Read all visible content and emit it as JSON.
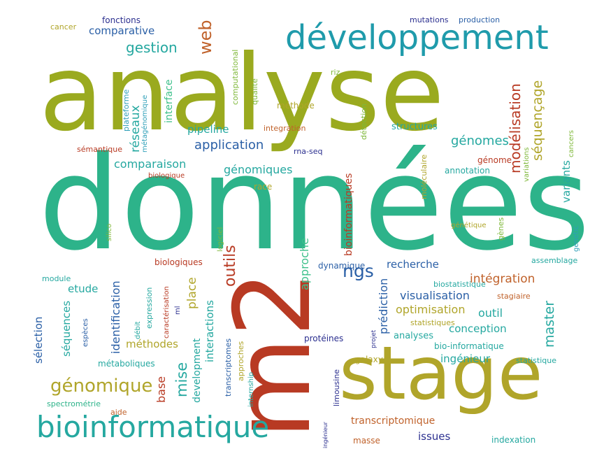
{
  "colors": {
    "olive": "#9aaa1f",
    "teal": "#25a8a0",
    "green": "#2db38a",
    "sea": "#1f9bab",
    "blue": "#2a5fa6",
    "navy": "#2b2f8f",
    "red": "#b83a23",
    "rust": "#c0622b",
    "gold": "#b0a52a",
    "lime": "#7fb83a",
    "mint": "#3cc08a",
    "cyan": "#2e9fb8"
  },
  "words": [
    {
      "text": "analyse",
      "color": "olive"
    },
    {
      "text": "données",
      "color": "green"
    },
    {
      "text": "développement",
      "color": "sea"
    },
    {
      "text": "stage",
      "color": "gold"
    },
    {
      "text": "m2",
      "color": "red"
    },
    {
      "text": "bioinformatique",
      "color": "teal"
    },
    {
      "text": "génomique",
      "color": "gold"
    },
    {
      "text": "web",
      "color": "rust"
    },
    {
      "text": "gestion",
      "color": "teal"
    },
    {
      "text": "comparative",
      "color": "blue"
    },
    {
      "text": "fonctions",
      "color": "navy"
    },
    {
      "text": "cancer",
      "color": "gold"
    },
    {
      "text": "mutations",
      "color": "navy"
    },
    {
      "text": "production",
      "color": "blue"
    },
    {
      "text": "modélisation",
      "color": "red"
    },
    {
      "text": "séquençage",
      "color": "gold"
    },
    {
      "text": "génomes",
      "color": "teal"
    },
    {
      "text": "application",
      "color": "blue"
    },
    {
      "text": "comparaison",
      "color": "teal"
    },
    {
      "text": "génomiques",
      "color": "teal"
    },
    {
      "text": "pipeline",
      "color": "teal"
    },
    {
      "text": "réseaux",
      "color": "teal"
    },
    {
      "text": "interface",
      "color": "mint"
    },
    {
      "text": "plateforme",
      "color": "cyan"
    },
    {
      "text": "métagénomique",
      "color": "cyan"
    },
    {
      "text": "qualité",
      "color": "lime"
    },
    {
      "text": "computational",
      "color": "lime"
    },
    {
      "text": "méthode",
      "color": "gold"
    },
    {
      "text": "riz",
      "color": "lime"
    },
    {
      "text": "integration",
      "color": "rust"
    },
    {
      "text": "détection",
      "color": "lime"
    },
    {
      "text": "structures",
      "color": "teal"
    },
    {
      "text": "rna-seq",
      "color": "navy"
    },
    {
      "text": "sémantique",
      "color": "red"
    },
    {
      "text": "biologique",
      "color": "red"
    },
    {
      "text": "bioinformatiques",
      "color": "red"
    },
    {
      "text": "moléculaire",
      "color": "gold"
    },
    {
      "text": "annotation",
      "color": "teal"
    },
    {
      "text": "génome",
      "color": "red"
    },
    {
      "text": "variants",
      "color": "teal"
    },
    {
      "text": "variations",
      "color": "lime"
    },
    {
      "text": "cancers",
      "color": "lime"
    },
    {
      "text": "race",
      "color": "gold"
    },
    {
      "text": "silico",
      "color": "lime"
    },
    {
      "text": "logiciel",
      "color": "lime"
    },
    {
      "text": "outils",
      "color": "red"
    },
    {
      "text": "approche",
      "color": "mint"
    },
    {
      "text": "ngs",
      "color": "blue"
    },
    {
      "text": "recherche",
      "color": "blue"
    },
    {
      "text": "dynamique",
      "color": "blue"
    },
    {
      "text": "génétique",
      "color": "gold"
    },
    {
      "text": "gènes",
      "color": "lime"
    },
    {
      "text": "genetic",
      "color": "cyan"
    },
    {
      "text": "assemblage",
      "color": "teal"
    },
    {
      "text": "intégration",
      "color": "rust"
    },
    {
      "text": "master",
      "color": "teal"
    },
    {
      "text": "module",
      "color": "teal"
    },
    {
      "text": "identification",
      "color": "blue"
    },
    {
      "text": "etude",
      "color": "teal"
    },
    {
      "text": "biologiques",
      "color": "red"
    },
    {
      "text": "expression",
      "color": "teal"
    },
    {
      "text": "caractérisation",
      "color": "red"
    },
    {
      "text": "place",
      "color": "gold"
    },
    {
      "text": "prédiction",
      "color": "blue"
    },
    {
      "text": "visualisation",
      "color": "blue"
    },
    {
      "text": "biostatistique",
      "color": "teal"
    },
    {
      "text": "stagiaire",
      "color": "rust"
    },
    {
      "text": "optimisation",
      "color": "gold"
    },
    {
      "text": "outil",
      "color": "teal"
    },
    {
      "text": "statistiques",
      "color": "gold"
    },
    {
      "text": "conception",
      "color": "teal"
    },
    {
      "text": "analyses",
      "color": "teal"
    },
    {
      "text": "sélection",
      "color": "blue"
    },
    {
      "text": "séquences",
      "color": "teal"
    },
    {
      "text": "espèces",
      "color": "blue"
    },
    {
      "text": "débit",
      "color": "teal"
    },
    {
      "text": "ml",
      "color": "navy"
    },
    {
      "text": "méthodes",
      "color": "gold"
    },
    {
      "text": "interactions",
      "color": "teal"
    },
    {
      "text": "mise",
      "color": "teal"
    },
    {
      "text": "development",
      "color": "teal"
    },
    {
      "text": "transcriptomes",
      "color": "blue"
    },
    {
      "text": "approches",
      "color": "gold"
    },
    {
      "text": "internship",
      "color": "teal"
    },
    {
      "text": "protéines",
      "color": "navy"
    },
    {
      "text": "projet",
      "color": "navy"
    },
    {
      "text": "bio-informatique",
      "color": "teal"
    },
    {
      "text": "ingénieur",
      "color": "teal"
    },
    {
      "text": "statistique",
      "color": "teal"
    },
    {
      "text": "métaboliques",
      "color": "teal"
    },
    {
      "text": "galaxy",
      "color": "gold"
    },
    {
      "text": "limousine",
      "color": "navy"
    },
    {
      "text": "base",
      "color": "red"
    },
    {
      "text": "spectrométrie",
      "color": "green"
    },
    {
      "text": "aide",
      "color": "rust"
    },
    {
      "text": "transcriptomique",
      "color": "rust"
    },
    {
      "text": "issues",
      "color": "navy"
    },
    {
      "text": "masse",
      "color": "rust"
    },
    {
      "text": "indexation",
      "color": "teal"
    },
    {
      "text": "ingénieur",
      "color": "navy"
    }
  ]
}
